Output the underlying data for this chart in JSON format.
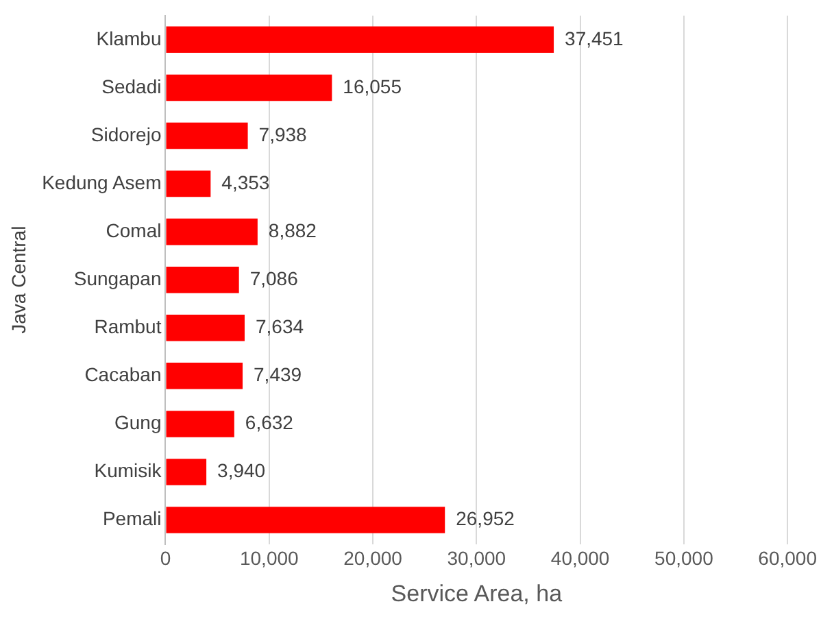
{
  "chart_data": {
    "type": "bar",
    "orientation": "horizontal",
    "xlabel": "Service Area, ha",
    "ylabel": "Java Central",
    "categories": [
      "Klambu",
      "Sedadi",
      "Sidorejo",
      "Kedung Asem",
      "Comal",
      "Sungapan",
      "Rambut",
      "Cacaban",
      "Gung",
      "Kumisik",
      "Pemali"
    ],
    "values": [
      37451,
      16055,
      7938,
      4353,
      8882,
      7086,
      7634,
      7439,
      6632,
      3940,
      26952
    ],
    "value_labels": [
      "37,451",
      "16,055",
      "7,938",
      "4,353",
      "8,882",
      "7,086",
      "7,634",
      "7,439",
      "6,632",
      "3,940",
      "26,952"
    ],
    "color": "#ff0000",
    "grid": "x",
    "legend": false,
    "xlim": [
      0,
      60000
    ],
    "xticks": [
      {
        "value": 0,
        "label": "0"
      },
      {
        "value": 10000,
        "label": "10,000"
      },
      {
        "value": 20000,
        "label": "20,000"
      },
      {
        "value": 30000,
        "label": "30,000"
      },
      {
        "value": 40000,
        "label": "40,000"
      },
      {
        "value": 50000,
        "label": "50,000"
      },
      {
        "value": 60000,
        "label": "60,000"
      }
    ]
  }
}
